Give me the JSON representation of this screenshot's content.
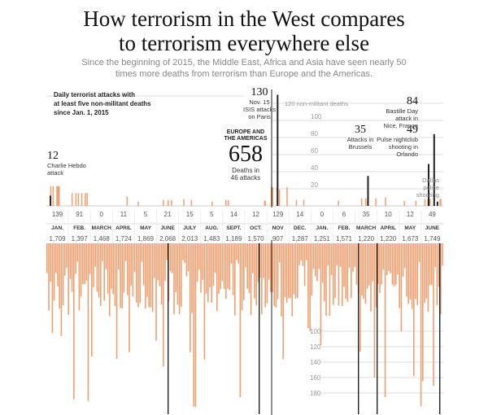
{
  "header": {
    "title_line1": "How terrorism in the West compares",
    "title_line2": "to terrorism everywhere else",
    "subtitle": "Since the beginning of 2015, the Middle East, Africa and Asia have seen nearly 50 times more deaths from terrorism than Europe and the Americas."
  },
  "chart_data": {
    "type": "bar",
    "description_label_line1": "Daily terrorist attacks with",
    "description_label_line2": "at least five non-militant deaths",
    "description_label_line3": "since Jan. 1, 2015",
    "y_top_ticks": [
      20,
      40,
      60,
      80,
      100
    ],
    "y_top_ceiling_label": "120 non-militant deaths",
    "y_bottom_ticks": [
      100,
      120,
      140,
      160,
      180
    ],
    "months": [
      {
        "label": "JAN.",
        "west": "139",
        "rest": "1,709"
      },
      {
        "label": "FEB.",
        "west": "91",
        "rest": "1,397"
      },
      {
        "label": "MARCH",
        "west": "0",
        "rest": "1,468"
      },
      {
        "label": "APRIL",
        "west": "11",
        "rest": "1,724"
      },
      {
        "label": "MAY",
        "west": "5",
        "rest": "1,869"
      },
      {
        "label": "JUNE",
        "west": "21",
        "rest": "2,068"
      },
      {
        "label": "JULY",
        "west": "15",
        "rest": "2,013"
      },
      {
        "label": "AUG.",
        "west": "5",
        "rest": "1,483"
      },
      {
        "label": "SEPT.",
        "west": "14",
        "rest": "1,189"
      },
      {
        "label": "OCT.",
        "west": "12",
        "rest": "1,570"
      },
      {
        "label": "NOV",
        "west": "129",
        "rest": "907"
      },
      {
        "label": "DEC.",
        "west": "14",
        "rest": "1,287"
      },
      {
        "label": "JAN.",
        "west": "0",
        "rest": "1,251"
      },
      {
        "label": "FEB.",
        "west": "6",
        "rest": "1,571"
      },
      {
        "label": "MARCH",
        "west": "35",
        "rest": "1,220"
      },
      {
        "label": "APRIL",
        "west": "10",
        "rest": "1,220"
      },
      {
        "label": "MAY",
        "west": "12",
        "rest": "1,673"
      },
      {
        "label": "JUNE",
        "west": "49",
        "rest": "1,749"
      }
    ],
    "west_total": {
      "label_line1": "EUROPE AND",
      "label_line2": "THE AMERICAS",
      "value": "658",
      "note_line1": "Deaths in",
      "note_line2": "46 attacks"
    },
    "annotations": [
      {
        "value": "12",
        "lines": [
          "Charlie Hebdo",
          "attack"
        ]
      },
      {
        "value": "130",
        "lines": [
          "Nov. 15",
          "ISIS attacks",
          "on Paris"
        ]
      },
      {
        "value": "35",
        "lines": [
          "Attacks in",
          "Brussels"
        ]
      },
      {
        "value": "49",
        "lines": [
          "Pulse nightclub",
          "shooting in",
          "Orlando"
        ]
      },
      {
        "value": "84",
        "lines": [
          "Bastille Day",
          "attack in",
          "Nice, France"
        ]
      },
      {
        "value": "",
        "lines": [
          "Dallas",
          "police",
          "shooting"
        ]
      }
    ],
    "colors": {
      "west_bar": "#f0a070",
      "rest_bar": "#f0a070",
      "highlight": "#222222",
      "grid": "#dddddd",
      "tick_label": "#999999"
    }
  }
}
